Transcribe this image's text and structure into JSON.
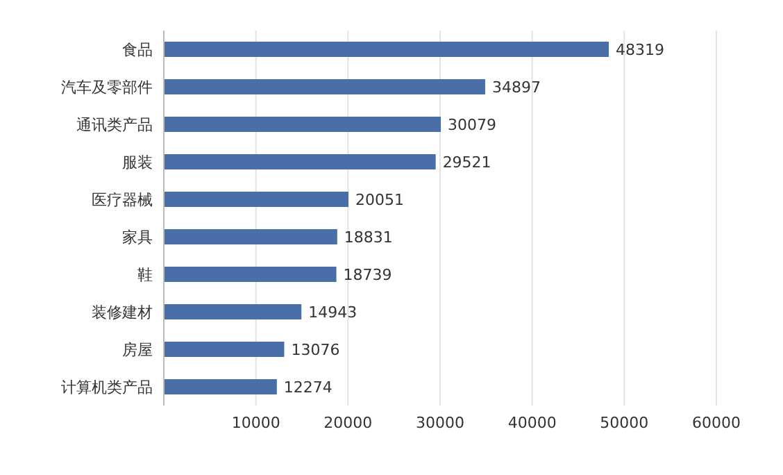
{
  "chart_data": {
    "type": "bar",
    "orientation": "horizontal",
    "categories": [
      "食品",
      "汽车及零部件",
      "通讯类产品",
      "服装",
      "医疗器械",
      "家具",
      "鞋",
      "装修建材",
      "房屋",
      "计算机类产品"
    ],
    "values": [
      48319,
      34897,
      30079,
      29521,
      20051,
      18831,
      18739,
      14943,
      13076,
      12274
    ],
    "color": "#4a6fa8",
    "xlim": [
      0,
      60000
    ],
    "xticks": [
      10000,
      20000,
      30000,
      40000,
      50000,
      60000
    ],
    "grid": "x",
    "data_labels": true
  }
}
